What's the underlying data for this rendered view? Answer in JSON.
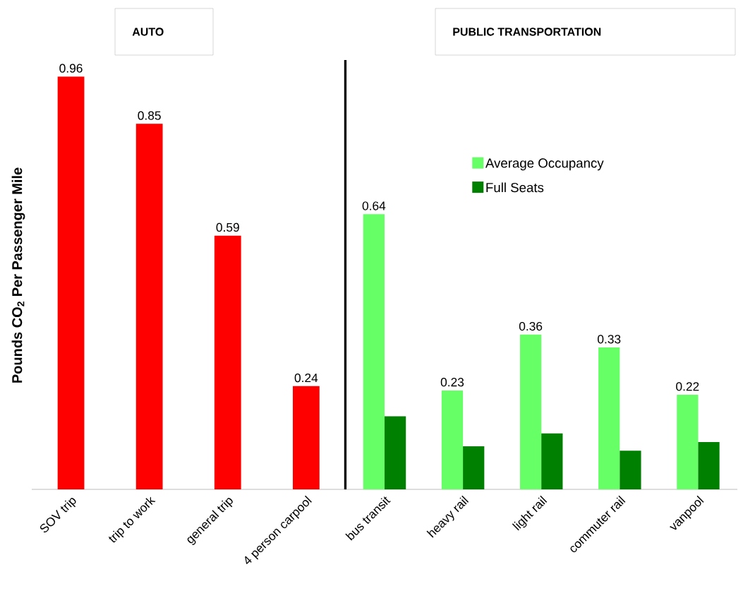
{
  "chart_data": {
    "type": "bar",
    "ylabel": "Pounds CO$_{2}$ Per Passenger Mile",
    "categories": [
      "SOV trip",
      "trip to work",
      "general trip",
      "4 person carpool",
      "bus transit",
      "heavy rail",
      "light rail",
      "commuter rail",
      "vanpool"
    ],
    "series": [
      {
        "color": "#ff0000",
        "values": [
          0.96,
          0.85,
          0.59,
          0.24,
          null,
          null,
          null,
          null,
          null
        ],
        "value_labels": [
          "0.96",
          "0.85",
          "0.59",
          "0.24",
          null,
          null,
          null,
          null,
          null
        ]
      },
      {
        "name": "Average Occupancy",
        "color": "#66ff66",
        "values": [
          null,
          null,
          null,
          null,
          0.64,
          0.23,
          0.36,
          0.33,
          0.22
        ],
        "value_labels": [
          null,
          null,
          null,
          null,
          "0.64",
          "0.23",
          "0.36",
          "0.33",
          "0.22"
        ]
      },
      {
        "name": "Full Seats",
        "color": "#008000",
        "values": [
          null,
          null,
          null,
          null,
          0.17,
          0.1,
          0.13,
          0.09,
          0.11
        ]
      }
    ],
    "annotations": [
      "AUTO",
      "PUBLIC TRANSPORTATION"
    ],
    "legend": "top right"
  }
}
